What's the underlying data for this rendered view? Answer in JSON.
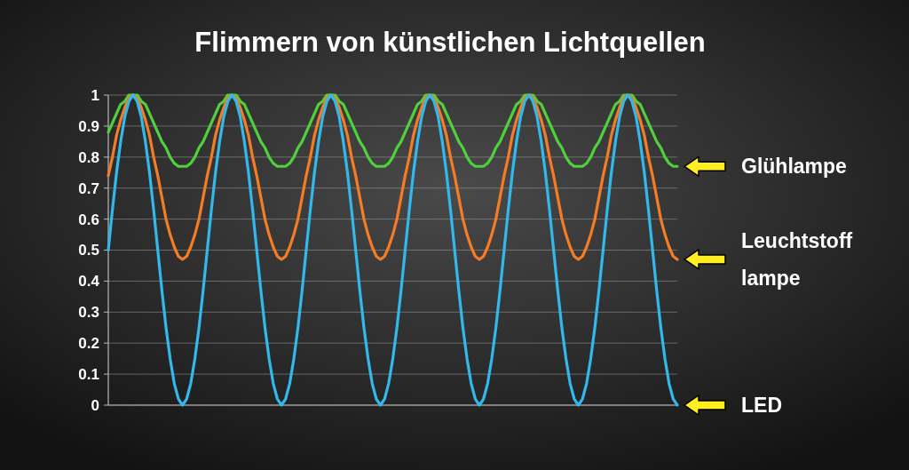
{
  "chart_data": {
    "type": "line",
    "title": "Flimmern von künstlichen Lichtquellen",
    "categories": [
      null,
      null,
      null,
      null,
      null,
      null,
      null,
      null,
      null,
      null,
      null,
      null,
      null,
      null,
      null,
      null,
      null,
      null,
      null,
      null,
      null,
      null,
      null,
      null,
      null,
      null,
      null,
      null,
      null,
      null,
      null,
      null,
      null,
      null,
      null,
      null,
      null,
      null,
      null,
      null,
      null,
      null,
      null,
      null,
      null,
      null,
      null,
      null,
      null,
      null,
      null,
      null,
      null,
      null,
      null,
      null,
      null,
      null,
      null,
      null,
      null,
      null,
      null,
      null,
      null,
      null,
      null,
      null,
      null,
      null,
      null,
      null,
      null,
      null,
      null,
      null,
      null,
      null,
      null,
      null,
      null,
      null,
      null,
      null,
      null,
      null,
      null,
      null,
      null,
      null,
      null,
      null,
      null,
      null,
      null,
      null,
      null,
      null,
      null,
      null,
      null,
      null,
      null,
      null,
      null,
      null,
      null,
      null,
      null,
      null,
      null,
      null,
      null,
      null,
      null,
      null,
      null,
      null,
      null,
      null,
      null,
      null,
      null,
      null,
      null,
      null,
      null,
      null,
      null,
      null,
      null,
      null,
      null,
      null,
      null,
      null,
      null,
      null,
      null
    ],
    "series": [
      {
        "name": "Glühlampe",
        "color": "#4fd13c",
        "values": [
          0.88,
          0.91,
          0.94,
          0.97,
          0.98,
          1,
          1,
          1,
          0.98,
          0.97,
          0.94,
          0.91,
          0.88,
          0.85,
          0.83,
          0.8,
          0.78,
          0.77,
          0.77,
          0.77,
          0.78,
          0.8,
          0.83,
          0.85,
          0.88,
          0.91,
          0.94,
          0.97,
          0.98,
          1,
          1,
          1,
          0.98,
          0.97,
          0.94,
          0.91,
          0.88,
          0.85,
          0.83,
          0.8,
          0.78,
          0.77,
          0.77,
          0.77,
          0.78,
          0.8,
          0.83,
          0.85,
          0.88,
          0.91,
          0.94,
          0.97,
          0.98,
          1,
          1,
          1,
          0.98,
          0.97,
          0.94,
          0.91,
          0.88,
          0.85,
          0.83,
          0.8,
          0.78,
          0.77,
          0.77,
          0.77,
          0.78,
          0.8,
          0.83,
          0.85,
          0.88,
          0.91,
          0.94,
          0.97,
          0.98,
          1,
          1,
          1,
          0.98,
          0.97,
          0.94,
          0.91,
          0.88,
          0.85,
          0.83,
          0.8,
          0.78,
          0.77,
          0.77,
          0.77,
          0.78,
          0.8,
          0.83,
          0.85,
          0.88,
          0.91,
          0.94,
          0.97,
          0.98,
          1,
          1,
          1,
          0.98,
          0.97,
          0.94,
          0.91,
          0.88,
          0.85,
          0.83,
          0.8,
          0.78,
          0.77,
          0.77,
          0.77,
          0.78,
          0.8,
          0.83,
          0.85,
          0.88,
          0.91,
          0.94,
          0.97,
          0.98,
          1,
          1,
          1,
          0.98,
          0.97,
          0.94,
          0.91,
          0.88,
          0.85,
          0.83,
          0.8,
          0.78,
          0.77,
          0.77
        ]
      },
      {
        "name": "Leuchtstoff lampe",
        "color": "#f47c25",
        "values": [
          0.74,
          0.8,
          0.87,
          0.92,
          0.96,
          0.99,
          1,
          0.99,
          0.96,
          0.92,
          0.87,
          0.8,
          0.74,
          0.67,
          0.6,
          0.55,
          0.51,
          0.48,
          0.47,
          0.48,
          0.51,
          0.55,
          0.6,
          0.67,
          0.74,
          0.8,
          0.87,
          0.92,
          0.96,
          0.99,
          1,
          0.99,
          0.96,
          0.92,
          0.87,
          0.8,
          0.74,
          0.67,
          0.6,
          0.55,
          0.51,
          0.48,
          0.47,
          0.48,
          0.51,
          0.55,
          0.6,
          0.67,
          0.74,
          0.8,
          0.87,
          0.92,
          0.96,
          0.99,
          1,
          0.99,
          0.96,
          0.92,
          0.87,
          0.8,
          0.74,
          0.67,
          0.6,
          0.55,
          0.51,
          0.48,
          0.47,
          0.48,
          0.51,
          0.55,
          0.6,
          0.67,
          0.74,
          0.8,
          0.87,
          0.92,
          0.96,
          0.99,
          1,
          0.99,
          0.96,
          0.92,
          0.87,
          0.8,
          0.74,
          0.67,
          0.6,
          0.55,
          0.51,
          0.48,
          0.47,
          0.48,
          0.51,
          0.55,
          0.6,
          0.67,
          0.74,
          0.8,
          0.87,
          0.92,
          0.96,
          0.99,
          1,
          0.99,
          0.96,
          0.92,
          0.87,
          0.8,
          0.74,
          0.67,
          0.6,
          0.55,
          0.51,
          0.48,
          0.47,
          0.48,
          0.51,
          0.55,
          0.6,
          0.67,
          0.74,
          0.8,
          0.87,
          0.92,
          0.96,
          0.99,
          1,
          0.99,
          0.96,
          0.92,
          0.87,
          0.8,
          0.74,
          0.67,
          0.6,
          0.55,
          0.51,
          0.48,
          0.47
        ]
      },
      {
        "name": "LED",
        "color": "#33b8ec",
        "values": [
          0.5,
          0.63,
          0.75,
          0.85,
          0.93,
          0.98,
          1,
          0.98,
          0.93,
          0.85,
          0.75,
          0.63,
          0.5,
          0.37,
          0.25,
          0.15,
          0.07,
          0.02,
          0,
          0.02,
          0.07,
          0.15,
          0.25,
          0.37,
          0.5,
          0.63,
          0.75,
          0.85,
          0.93,
          0.98,
          1,
          0.98,
          0.93,
          0.85,
          0.75,
          0.63,
          0.5,
          0.37,
          0.25,
          0.15,
          0.07,
          0.02,
          0,
          0.02,
          0.07,
          0.15,
          0.25,
          0.37,
          0.5,
          0.63,
          0.75,
          0.85,
          0.93,
          0.98,
          1,
          0.98,
          0.93,
          0.85,
          0.75,
          0.63,
          0.5,
          0.37,
          0.25,
          0.15,
          0.07,
          0.02,
          0,
          0.02,
          0.07,
          0.15,
          0.25,
          0.37,
          0.5,
          0.63,
          0.75,
          0.85,
          0.93,
          0.98,
          1,
          0.98,
          0.93,
          0.85,
          0.75,
          0.63,
          0.5,
          0.37,
          0.25,
          0.15,
          0.07,
          0.02,
          0,
          0.02,
          0.07,
          0.15,
          0.25,
          0.37,
          0.5,
          0.63,
          0.75,
          0.85,
          0.93,
          0.98,
          1,
          0.98,
          0.93,
          0.85,
          0.75,
          0.63,
          0.5,
          0.37,
          0.25,
          0.15,
          0.07,
          0.02,
          0,
          0.02,
          0.07,
          0.15,
          0.25,
          0.37,
          0.5,
          0.63,
          0.75,
          0.85,
          0.93,
          0.98,
          1,
          0.98,
          0.93,
          0.85,
          0.75,
          0.63,
          0.5,
          0.37,
          0.25,
          0.15,
          0.07,
          0.02,
          0
        ]
      }
    ],
    "ylim": [
      0,
      1
    ],
    "yticks": [
      0,
      0.1,
      0.2,
      0.3,
      0.4,
      0.5,
      0.6,
      0.7,
      0.8,
      0.9,
      1
    ],
    "grid": "y"
  }
}
